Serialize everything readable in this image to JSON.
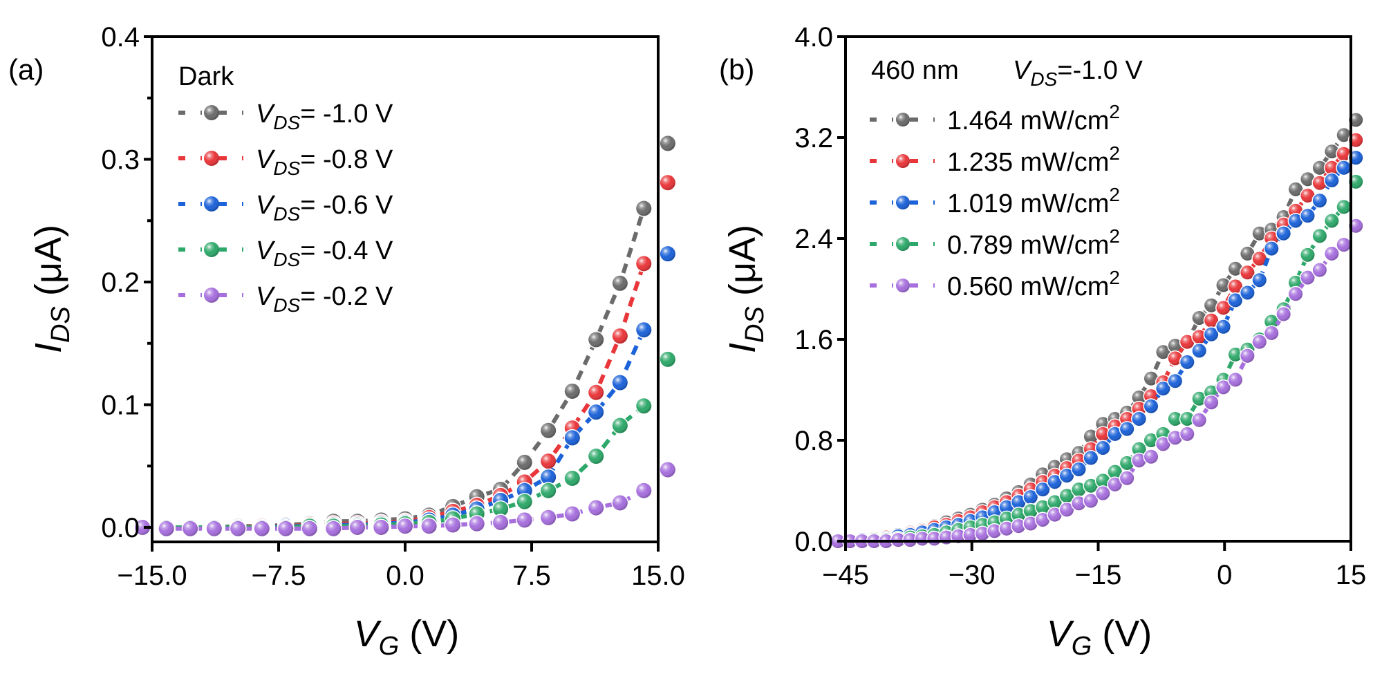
{
  "chart_data": [
    {
      "panel": "(a)",
      "type": "line",
      "title": "",
      "xlabel": "V_G (V)",
      "xlabel_main": "V",
      "xlabel_sub": "G",
      "xlabel_unit": " (V)",
      "ylabel": "I_DS (μA)",
      "ylabel_main": "I",
      "ylabel_sub": "DS",
      "ylabel_unit": " (μA)",
      "xlim": [
        -15.0,
        15.0
      ],
      "ylim": [
        -0.012,
        0.4
      ],
      "xticks": [
        -15.0,
        -7.5,
        0.0,
        7.5,
        15.0
      ],
      "xtick_labels": [
        "−15.0",
        "−7.5",
        "0.0",
        "7.5",
        "15.0"
      ],
      "yticks": [
        0.0,
        0.1,
        0.2,
        0.3,
        0.4
      ],
      "ytick_labels": [
        "0.0",
        "0.1",
        "0.2",
        "0.3",
        "0.4"
      ],
      "yminor": [
        0.05,
        0.15,
        0.25,
        0.35
      ],
      "legend_title": "Dark",
      "legend_position": "top-left",
      "grid": false,
      "x": [
        -15.57,
        -14.15,
        -12.74,
        -11.32,
        -9.91,
        -8.49,
        -7.08,
        -5.66,
        -4.25,
        -2.83,
        -1.42,
        0.0,
        1.42,
        2.83,
        4.25,
        5.66,
        7.08,
        8.49,
        9.91,
        11.32,
        12.74,
        14.15,
        15.57
      ],
      "series": [
        {
          "name": "V_DS= -1.0 V",
          "label_main": "V",
          "label_sub": "DS",
          "label_rest": "= -1.0 V",
          "color": "#6b6b6b",
          "values": [
            0.0,
            0.0,
            0.0,
            0.0,
            0.001,
            0.001,
            0.002,
            0.003,
            0.005,
            0.005,
            0.006,
            0.007,
            0.01,
            0.017,
            0.025,
            0.031,
            0.053,
            0.079,
            0.111,
            0.153,
            0.199,
            0.26,
            0.313
          ]
        },
        {
          "name": "V_DS= -0.8 V",
          "label_main": "V",
          "label_sub": "DS",
          "label_rest": "= -0.8 V",
          "color": "#e8363a",
          "values": [
            0.0,
            0.0,
            0.0,
            0.0,
            0.0,
            0.001,
            0.001,
            0.002,
            0.003,
            0.003,
            0.004,
            0.005,
            0.008,
            0.013,
            0.018,
            0.026,
            0.037,
            0.054,
            0.081,
            0.11,
            0.156,
            0.215,
            0.281
          ]
        },
        {
          "name": "V_DS= -0.6 V",
          "label_main": "V",
          "label_sub": "DS",
          "label_rest": "= -0.6 V",
          "color": "#1c62d8",
          "values": [
            0.0,
            0.0,
            0.0,
            0.0,
            0.0,
            0.0,
            0.001,
            0.001,
            0.002,
            0.002,
            0.003,
            0.004,
            0.006,
            0.01,
            0.015,
            0.022,
            0.03,
            0.041,
            0.073,
            0.094,
            0.118,
            0.161,
            0.223
          ]
        },
        {
          "name": "V_DS= -0.4 V",
          "label_main": "V",
          "label_sub": "DS",
          "label_rest": "= -0.4 V",
          "color": "#2ea86a",
          "values": [
            0.0,
            0.0,
            0.0,
            0.0,
            0.0,
            0.0,
            0.0,
            0.001,
            0.001,
            0.001,
            0.002,
            0.003,
            0.004,
            0.007,
            0.011,
            0.015,
            0.021,
            0.03,
            0.04,
            0.058,
            0.083,
            0.099,
            0.137
          ]
        },
        {
          "name": "V_DS= -0.2 V",
          "label_main": "V",
          "label_sub": "DS",
          "label_rest": "= -0.2 V",
          "color": "#a66fdd",
          "values": [
            0.0,
            -0.001,
            -0.001,
            -0.001,
            -0.001,
            -0.001,
            -0.001,
            -0.001,
            -0.001,
            0.0,
            0.0,
            0.001,
            0.001,
            0.002,
            0.003,
            0.004,
            0.006,
            0.008,
            0.011,
            0.016,
            0.02,
            0.03,
            0.047
          ]
        }
      ]
    },
    {
      "panel": "(b)",
      "type": "line",
      "title": "",
      "xlabel": "V_G (V)",
      "xlabel_main": "V",
      "xlabel_sub": "G",
      "xlabel_unit": " (V)",
      "ylabel": "I_DS (μA)",
      "ylabel_main": "I",
      "ylabel_sub": "DS",
      "ylabel_unit": " (μA)",
      "xlim": [
        -45,
        15
      ],
      "ylim": [
        0.0,
        4.0
      ],
      "xticks": [
        -45,
        -30,
        -15,
        0,
        15
      ],
      "xtick_labels": [
        "−45",
        "−30",
        "−15",
        "0",
        "15"
      ],
      "yticks": [
        0.0,
        0.8,
        1.6,
        2.4,
        3.2,
        4.0
      ],
      "ytick_labels": [
        "0.0",
        "0.8",
        "1.6",
        "2.4",
        "3.2",
        "4.0"
      ],
      "legend_header_left": "460 nm",
      "legend_header_main": "V",
      "legend_header_sub": "DS",
      "legend_header_rest": "=-1.0 V",
      "legend_position": "top-left",
      "grid": false,
      "x": [
        -45.9,
        -44.47,
        -43.04,
        -41.61,
        -40.18,
        -38.75,
        -37.32,
        -35.89,
        -34.46,
        -33.03,
        -31.6,
        -30.17,
        -28.74,
        -27.31,
        -25.88,
        -24.45,
        -23.02,
        -21.59,
        -20.16,
        -18.73,
        -17.3,
        -15.87,
        -14.44,
        -13.01,
        -11.58,
        -10.15,
        -8.72,
        -7.29,
        -5.86,
        -4.43,
        -3.0,
        -1.57,
        -0.14,
        1.29,
        2.72,
        4.15,
        5.58,
        7.01,
        8.44,
        9.87,
        11.3,
        12.73,
        14.16,
        15.59
      ],
      "series": [
        {
          "name": "1.464 mW/cm2",
          "label_main": "1.464 mW/cm",
          "label_sup": "2",
          "color": "#6b6b6b",
          "values": [
            0.0,
            0.0,
            0.01,
            0.02,
            0.03,
            0.05,
            0.07,
            0.09,
            0.12,
            0.15,
            0.18,
            0.21,
            0.25,
            0.29,
            0.34,
            0.39,
            0.45,
            0.53,
            0.59,
            0.65,
            0.7,
            0.83,
            0.93,
            0.97,
            1.02,
            1.14,
            1.29,
            1.5,
            1.55,
            1.58,
            1.77,
            1.87,
            2.03,
            2.16,
            2.28,
            2.44,
            2.47,
            2.57,
            2.79,
            2.87,
            2.96,
            3.09,
            3.22,
            3.34
          ]
        },
        {
          "name": "1.235 mW/cm2",
          "label_main": "1.235 mW/cm",
          "label_sup": "2",
          "color": "#e8363a",
          "values": [
            0.0,
            0.0,
            0.01,
            0.02,
            0.03,
            0.04,
            0.06,
            0.08,
            0.11,
            0.13,
            0.16,
            0.19,
            0.23,
            0.27,
            0.31,
            0.36,
            0.41,
            0.47,
            0.52,
            0.58,
            0.64,
            0.73,
            0.85,
            0.91,
            0.97,
            1.05,
            1.15,
            1.26,
            1.45,
            1.58,
            1.62,
            1.75,
            1.85,
            2.02,
            2.13,
            2.24,
            2.4,
            2.51,
            2.62,
            2.74,
            2.84,
            2.96,
            3.07,
            3.18
          ]
        },
        {
          "name": "1.019 mW/cm2",
          "label_main": "1.019 mW/cm",
          "label_sup": "2",
          "color": "#1c62d8",
          "values": [
            0.0,
            0.0,
            0.01,
            0.01,
            0.02,
            0.04,
            0.05,
            0.07,
            0.09,
            0.11,
            0.13,
            0.16,
            0.19,
            0.23,
            0.27,
            0.31,
            0.35,
            0.41,
            0.47,
            0.52,
            0.57,
            0.66,
            0.74,
            0.85,
            0.89,
            0.97,
            1.07,
            1.21,
            1.27,
            1.42,
            1.51,
            1.64,
            1.7,
            1.91,
            1.97,
            2.07,
            2.32,
            2.44,
            2.54,
            2.58,
            2.7,
            2.86,
            2.96,
            3.04
          ]
        },
        {
          "name": "0.789 mW/cm2",
          "label_main": "0.789 mW/cm",
          "label_sup": "2",
          "color": "#2ea86a",
          "values": [
            0.0,
            0.0,
            0.0,
            0.01,
            0.01,
            0.02,
            0.03,
            0.04,
            0.05,
            0.07,
            0.09,
            0.11,
            0.13,
            0.15,
            0.18,
            0.21,
            0.24,
            0.27,
            0.31,
            0.36,
            0.41,
            0.44,
            0.48,
            0.55,
            0.62,
            0.73,
            0.8,
            0.85,
            0.97,
            0.97,
            1.13,
            1.18,
            1.28,
            1.48,
            1.52,
            1.6,
            1.74,
            1.84,
            2.05,
            2.27,
            2.42,
            2.54,
            2.65,
            2.85
          ]
        },
        {
          "name": "0.560 mW/cm2",
          "label_main": "0.560 mW/cm",
          "label_sup": "2",
          "color": "#a66fdd",
          "values": [
            0.0,
            0.0,
            0.0,
            0.0,
            0.0,
            0.01,
            0.01,
            0.02,
            0.02,
            0.03,
            0.04,
            0.05,
            0.06,
            0.08,
            0.1,
            0.12,
            0.14,
            0.17,
            0.21,
            0.25,
            0.3,
            0.32,
            0.38,
            0.45,
            0.5,
            0.64,
            0.67,
            0.77,
            0.82,
            0.85,
            0.96,
            1.1,
            1.22,
            1.28,
            1.47,
            1.58,
            1.65,
            1.8,
            1.96,
            2.09,
            2.15,
            2.28,
            2.35,
            2.5
          ]
        }
      ]
    }
  ]
}
